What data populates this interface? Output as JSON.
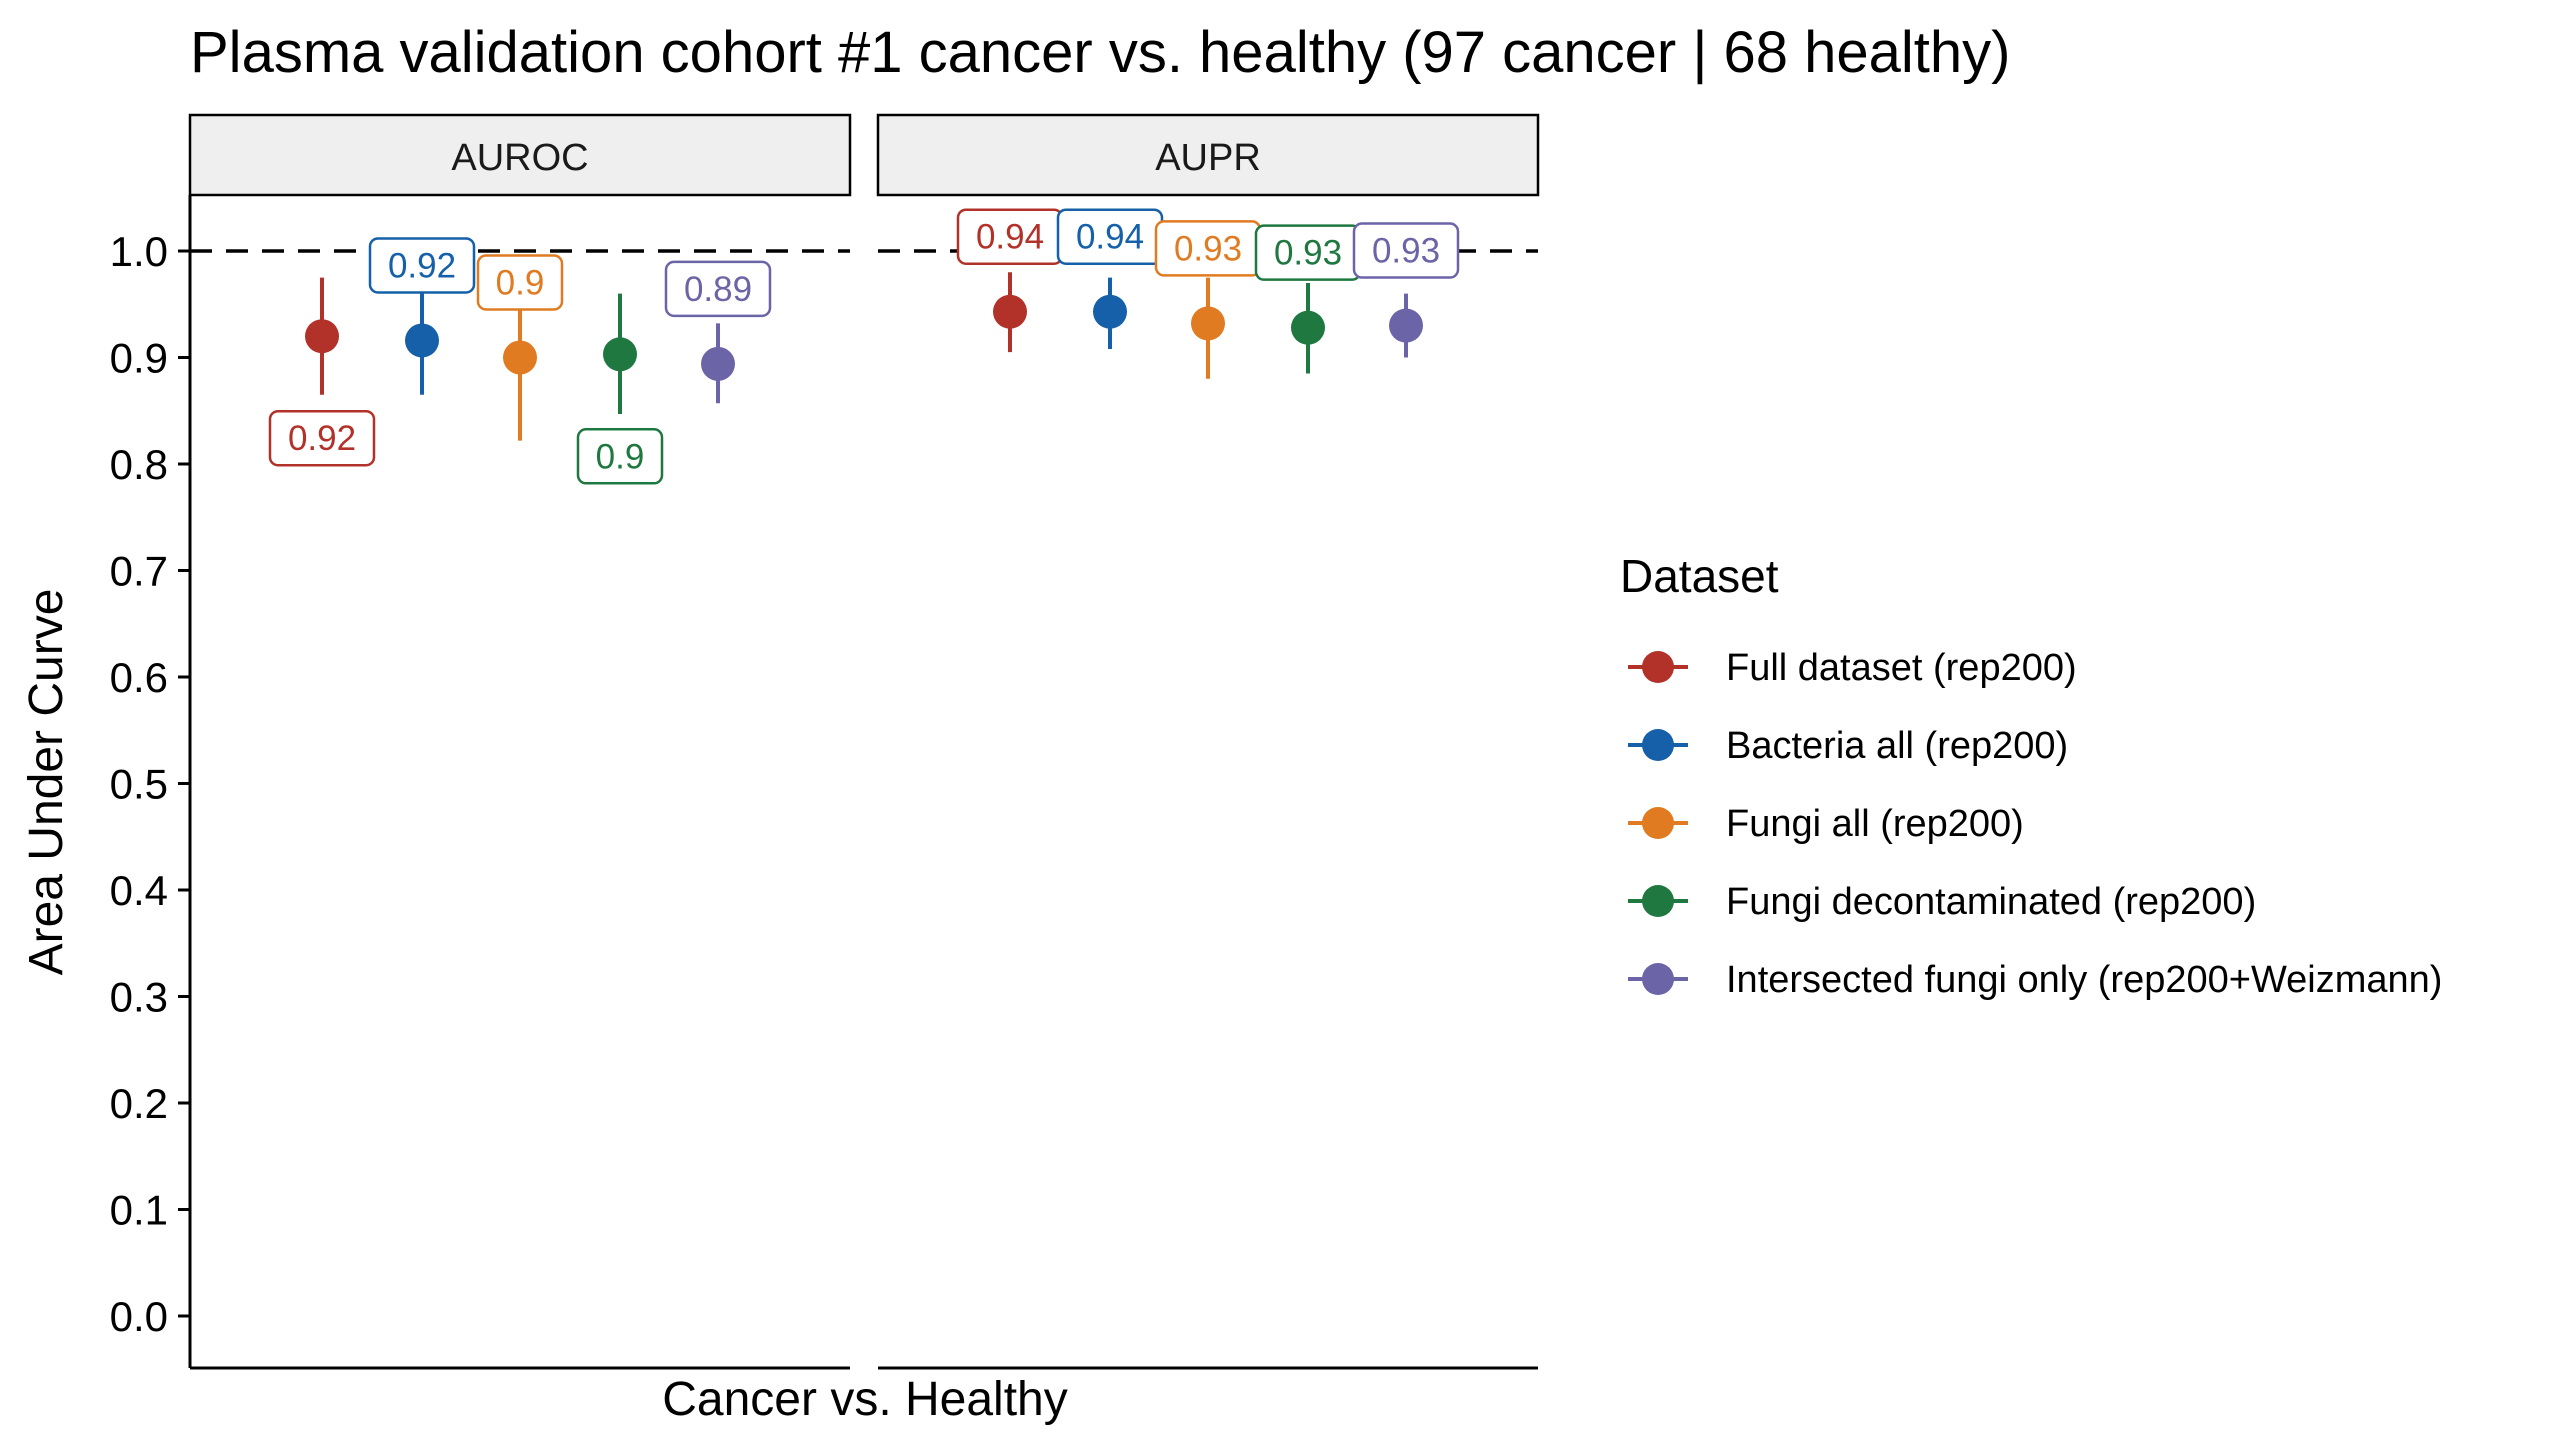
{
  "chart_data": {
    "type": "scatter",
    "title": "Plasma validation cohort #1 cancer vs. healthy (97 cancer | 68 healthy)",
    "xlabel": "Cancer vs. Healthy",
    "ylabel": "Area Under Curve",
    "ylim": [
      0,
      1
    ],
    "y_ticks": [
      "0.0",
      "0.1",
      "0.2",
      "0.3",
      "0.4",
      "0.5",
      "0.6",
      "0.7",
      "0.8",
      "0.9",
      "1.0"
    ],
    "reference_line": 1.0,
    "grid": false,
    "legend_title": "Dataset",
    "legend_position": "right",
    "panels": [
      "AUROC",
      "AUPR"
    ],
    "series": [
      {
        "name": "Full dataset (rep200)",
        "color": "#B2322A",
        "AUROC": {
          "value": 0.92,
          "low": 0.865,
          "high": 0.975,
          "label": "0.92",
          "label_position": "below"
        },
        "AUPR": {
          "value": 0.943,
          "low": 0.905,
          "high": 0.98,
          "label": "0.94",
          "label_position": "above"
        }
      },
      {
        "name": "Bacteria all (rep200)",
        "color": "#1560A8",
        "AUROC": {
          "value": 0.916,
          "low": 0.865,
          "high": 0.97,
          "label": "0.92",
          "label_position": "above"
        },
        "AUPR": {
          "value": 0.943,
          "low": 0.908,
          "high": 0.975,
          "label": "0.94",
          "label_position": "above"
        }
      },
      {
        "name": "Fungi all (rep200)",
        "color": "#E07B22",
        "AUROC": {
          "value": 0.9,
          "low": 0.822,
          "high": 0.97,
          "label": "0.9",
          "label_position": "above"
        },
        "AUPR": {
          "value": 0.932,
          "low": 0.88,
          "high": 0.975,
          "label": "0.93",
          "label_position": "above"
        }
      },
      {
        "name": "Fungi decontaminated (rep200)",
        "color": "#1E7840",
        "AUROC": {
          "value": 0.903,
          "low": 0.847,
          "high": 0.96,
          "label": "0.9",
          "label_position": "below"
        },
        "AUPR": {
          "value": 0.928,
          "low": 0.885,
          "high": 0.97,
          "label": "0.93",
          "label_position": "above"
        }
      },
      {
        "name": "Intersected fungi only (rep200+Weizmann)",
        "color": "#6B65A8",
        "AUROC": {
          "value": 0.894,
          "low": 0.857,
          "high": 0.932,
          "label": "0.89",
          "label_position": "above"
        },
        "AUPR": {
          "value": 0.93,
          "low": 0.9,
          "high": 0.96,
          "label": "0.93",
          "label_position": "above"
        }
      }
    ]
  }
}
